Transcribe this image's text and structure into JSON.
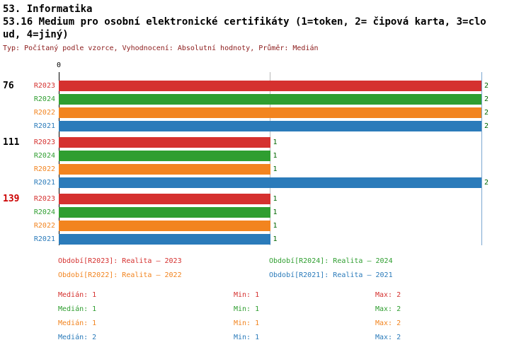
{
  "header": {
    "section_title": "53. Informatika",
    "title_lines": [
      "53.16 Medium pro osobní elektronické certifikáty (1=token, 2= čipová karta, 3=clo",
      "ud, 4=jiný)"
    ],
    "meta": "Typ: Počítaný podle vzorce, Vyhodnocení: Absolutní hodnoty, Průměr: Medián"
  },
  "chart_data": {
    "type": "bar",
    "orientation": "horizontal",
    "axis": {
      "min": 0,
      "max": 2,
      "zero_label": "0"
    },
    "colors": {
      "R2023": "#d5312f",
      "R2024": "#2f9e30",
      "R2022": "#f2841f",
      "R2021": "#2b7bba"
    },
    "value_label_color": "#006600",
    "axis_color": "#000000",
    "grid_color": "#b8b8b8",
    "max_line_color": "#7ba7d0",
    "groups": [
      {
        "label": "76",
        "label_color": "#000000",
        "bars": [
          {
            "series": "R2023",
            "value": 2
          },
          {
            "series": "R2024",
            "value": 2
          },
          {
            "series": "R2022",
            "value": 2
          },
          {
            "series": "R2021",
            "value": 2
          }
        ]
      },
      {
        "label": "111",
        "label_color": "#000000",
        "bars": [
          {
            "series": "R2023",
            "value": 1
          },
          {
            "series": "R2024",
            "value": 1
          },
          {
            "series": "R2022",
            "value": 1
          },
          {
            "series": "R2021",
            "value": 2
          }
        ]
      },
      {
        "label": "139",
        "label_color": "#cc0000",
        "bars": [
          {
            "series": "R2023",
            "value": 1
          },
          {
            "series": "R2024",
            "value": 1
          },
          {
            "series": "R2022",
            "value": 1
          },
          {
            "series": "R2021",
            "value": 1
          }
        ]
      }
    ],
    "legend": [
      {
        "series": "R2023",
        "text": "Období[R2023]: Realita – 2023",
        "color": "#d5312f"
      },
      {
        "series": "R2024",
        "text": "Období[R2024]: Realita – 2024",
        "color": "#2f9e30"
      },
      {
        "series": "R2022",
        "text": "Období[R2022]: Realita – 2022",
        "color": "#f2841f"
      },
      {
        "series": "R2021",
        "text": "Období[R2021]: Realita – 2021",
        "color": "#2b7bba"
      }
    ],
    "stats": [
      {
        "series": "R2023",
        "median": "Medián: 1",
        "min": "Min: 1",
        "max": "Max: 2",
        "color": "#d5312f"
      },
      {
        "series": "R2024",
        "median": "Medián: 1",
        "min": "Min: 1",
        "max": "Max: 2",
        "color": "#2f9e30"
      },
      {
        "series": "R2022",
        "median": "Medián: 1",
        "min": "Min: 1",
        "max": "Max: 2",
        "color": "#f2841f"
      },
      {
        "series": "R2021",
        "median": "Medián: 2",
        "min": "Min: 1",
        "max": "Max: 2",
        "color": "#2b7bba"
      }
    ]
  }
}
